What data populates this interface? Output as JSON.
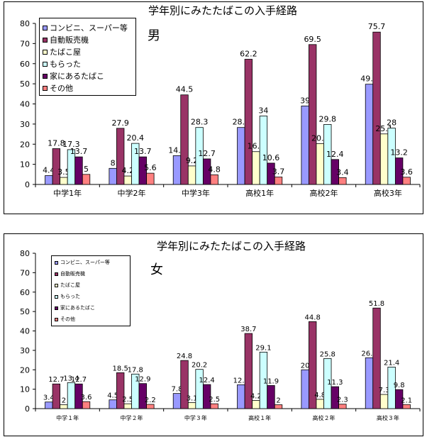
{
  "colors": [
    "#9999ff",
    "#993366",
    "#ffffcc",
    "#ccffff",
    "#660066",
    "#ff8080"
  ],
  "panels": [
    {
      "sex_label": "男"
    },
    {
      "sex_label": "女"
    }
  ],
  "chart_data": [
    {
      "type": "bar",
      "title": "学年別にみたたばこの入手経路",
      "xlabel": "",
      "ylabel": "",
      "ylim": [
        0,
        80
      ],
      "yticks": [
        "0",
        "10",
        "20",
        "30",
        "40",
        "50",
        "60",
        "70",
        "80"
      ],
      "grid": false,
      "legend_position": "top-left",
      "categories": [
        "中学1年",
        "中学2年",
        "中学3年",
        "高校1年",
        "高校2年",
        "高校3年"
      ],
      "series": [
        {
          "name": "コンビニ、スーパー等",
          "values": [
            4.4,
            8,
            14.3,
            28.3,
            39,
            49.8
          ]
        },
        {
          "name": "自動販売機",
          "values": [
            17.8,
            27.9,
            44.5,
            62.2,
            69.5,
            75.7
          ]
        },
        {
          "name": "たばこ屋",
          "values": [
            3.5,
            4.2,
            9.2,
            16.3,
            20.3,
            25.1
          ]
        },
        {
          "name": "もらった",
          "values": [
            17.3,
            20.4,
            28.3,
            34,
            29.8,
            28
          ]
        },
        {
          "name": "家にあるたばこ",
          "values": [
            13.7,
            13.7,
            12.7,
            10.6,
            12.4,
            13.2
          ]
        },
        {
          "name": "その他",
          "values": [
            5,
            5.6,
            4.8,
            3.7,
            3.4,
            3.6
          ]
        }
      ]
    },
    {
      "type": "bar",
      "title": "学年別にみたたばこの入手経路",
      "xlabel": "",
      "ylabel": "",
      "ylim": [
        0,
        80
      ],
      "yticks": [
        "0",
        "10",
        "20",
        "30",
        "40",
        "50",
        "60",
        "70",
        "80"
      ],
      "grid": false,
      "legend_position": "top-left",
      "categories": [
        "中学１年",
        "中学２年",
        "中学３年",
        "高校１年",
        "高校２年",
        "高校３年"
      ],
      "series": [
        {
          "name": "コンビニ、スーパー等",
          "values": [
            3.4,
            4.5,
            7.8,
            12.3,
            20,
            26.2
          ]
        },
        {
          "name": "自動販売機",
          "values": [
            12.7,
            18.5,
            24.8,
            38.7,
            44.8,
            51.8
          ]
        },
        {
          "name": "たばこ屋",
          "values": [
            2,
            2.5,
            3.1,
            4.2,
            4.8,
            7.3
          ]
        },
        {
          "name": "もらった",
          "values": [
            13.4,
            17.8,
            20.2,
            29.1,
            25.8,
            21.4
          ]
        },
        {
          "name": "家にあるたばこ",
          "values": [
            12.7,
            12.9,
            12.4,
            11.9,
            11.3,
            9.8
          ]
        },
        {
          "name": "その他",
          "values": [
            3.6,
            2.2,
            2.5,
            2,
            2.3,
            2.1
          ]
        }
      ]
    }
  ]
}
